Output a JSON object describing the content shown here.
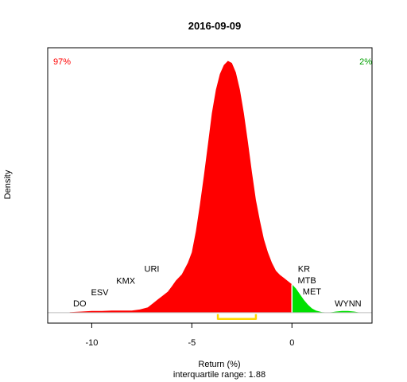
{
  "chart_data": {
    "type": "area",
    "title": "2016-09-09",
    "xlabel": "Return (%)",
    "subtitle": "interquartile range: 1.88",
    "ylabel": "Density",
    "xlim": [
      -12.2,
      4.0
    ],
    "ylim": [
      -0.02,
      0.505
    ],
    "xticks": [
      -10,
      -5,
      0
    ],
    "xtick_labels": [
      "-10",
      "-5",
      "0"
    ],
    "split_at": 0,
    "colors": {
      "negative": "#ff0000",
      "positive": "#00e000",
      "iqr": "#ffd700",
      "split_line": "#ffffff"
    },
    "percent_negative": "97%",
    "percent_positive": "2%",
    "iqr_range": [
      -3.7,
      -1.8
    ],
    "density": {
      "x": [
        -11.1,
        -10.5,
        -10.0,
        -9.5,
        -9.0,
        -8.5,
        -8.0,
        -7.6,
        -7.2,
        -7.0,
        -6.7,
        -6.5,
        -6.2,
        -6.0,
        -5.8,
        -5.5,
        -5.2,
        -5.0,
        -4.8,
        -4.6,
        -4.4,
        -4.2,
        -4.0,
        -3.8,
        -3.6,
        -3.4,
        -3.2,
        -3.0,
        -2.8,
        -2.6,
        -2.4,
        -2.2,
        -2.0,
        -1.8,
        -1.6,
        -1.4,
        -1.2,
        -1.0,
        -0.8,
        -0.6,
        -0.4,
        -0.2,
        0.0,
        0.2,
        0.4,
        0.6,
        0.8,
        1.0,
        1.2,
        1.5,
        1.8,
        2.0,
        2.2,
        2.5,
        2.8,
        3.1,
        3.4
      ],
      "y": [
        0.001,
        0.002,
        0.003,
        0.003,
        0.004,
        0.004,
        0.004,
        0.006,
        0.01,
        0.016,
        0.025,
        0.031,
        0.04,
        0.05,
        0.061,
        0.073,
        0.095,
        0.115,
        0.155,
        0.205,
        0.26,
        0.32,
        0.38,
        0.425,
        0.455,
        0.472,
        0.48,
        0.476,
        0.458,
        0.425,
        0.38,
        0.325,
        0.268,
        0.215,
        0.175,
        0.14,
        0.115,
        0.095,
        0.08,
        0.072,
        0.066,
        0.06,
        0.054,
        0.046,
        0.035,
        0.024,
        0.015,
        0.008,
        0.004,
        0.001,
        0.0,
        0.001,
        0.002,
        0.003,
        0.003,
        0.002,
        0.0
      ]
    },
    "annotations": [
      {
        "text": "DO",
        "x": -10.6,
        "y": 0.012
      },
      {
        "text": "ESV",
        "x": -9.6,
        "y": 0.033
      },
      {
        "text": "KMX",
        "x": -8.3,
        "y": 0.055
      },
      {
        "text": "URI",
        "x": -7.0,
        "y": 0.078
      },
      {
        "text": "KR",
        "x": 0.6,
        "y": 0.078
      },
      {
        "text": "MTB",
        "x": 0.75,
        "y": 0.056
      },
      {
        "text": "MET",
        "x": 1.0,
        "y": 0.035
      },
      {
        "text": "WYNN",
        "x": 2.8,
        "y": 0.012
      }
    ]
  }
}
